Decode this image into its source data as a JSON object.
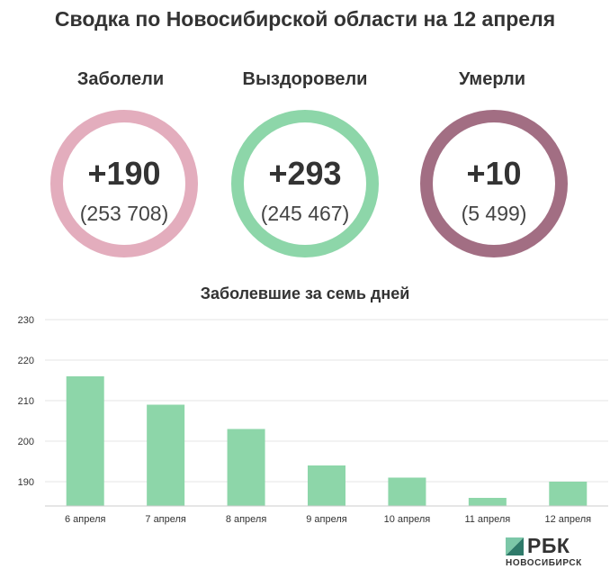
{
  "title": "Сводка по Новосибирской области на 12 апреля",
  "stats": [
    {
      "label": "Заболели",
      "delta": "+190",
      "total": "(253 708)",
      "color": "#e3adbd"
    },
    {
      "label": "Выздоровели",
      "delta": "+293",
      "total": "(245 467)",
      "color": "#8dd6a9"
    },
    {
      "label": "Умерли",
      "delta": "+10",
      "total": "(5 499)",
      "color": "#a26e83"
    }
  ],
  "chart_data": {
    "type": "bar",
    "title": "Заболевшие за семь дней",
    "categories": [
      "6 апреля",
      "7 апреля",
      "8 апреля",
      "9 апреля",
      "10 апреля",
      "11 апреля",
      "12 апреля"
    ],
    "values": [
      216,
      209,
      203,
      194,
      191,
      186,
      190
    ],
    "xlabel": "",
    "ylabel": "",
    "ylim": [
      184,
      230
    ],
    "yticks": [
      190,
      200,
      210,
      220,
      230
    ],
    "grid": true,
    "legend": "none",
    "bar_color": "#8dd6a9"
  },
  "logo": {
    "word": "РБК",
    "sub": "НОВОСИБИРСК",
    "colors": [
      "#2f7a6a",
      "#7cc7a8"
    ]
  }
}
